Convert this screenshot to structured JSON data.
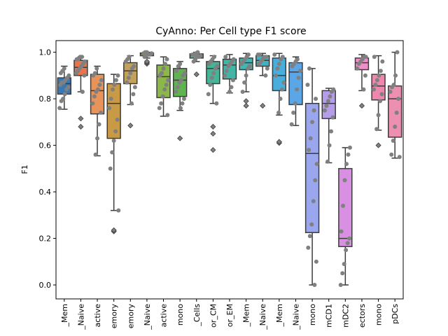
{
  "chart_data": {
    "type": "box",
    "title": "CyAnno: Per Cell type F1 score",
    "xlabel": "",
    "ylabel": "F1",
    "ylim": [
      -0.06,
      1.05
    ],
    "yticks": [
      "0.0",
      "0.2",
      "0.4",
      "0.6",
      "0.8",
      "1.0"
    ],
    "grid": false,
    "legend": "none",
    "point_color": "#808080",
    "categories": [
      {
        "label": "_Mem",
        "color": "#3a78b5",
        "q1": 0.82,
        "median": 0.865,
        "q3": 0.89,
        "wlo": 0.755,
        "whi": 0.94,
        "outliers": [],
        "points": [
          0.76,
          0.79,
          0.8,
          0.82,
          0.84,
          0.85,
          0.86,
          0.87,
          0.87,
          0.88,
          0.89,
          0.9,
          0.91,
          0.92,
          0.93
        ]
      },
      {
        "label": "_Naive",
        "color": "#e8744b",
        "q1": 0.9,
        "median": 0.935,
        "q3": 0.965,
        "wlo": 0.83,
        "whi": 0.98,
        "outliers": [
          0.68,
          0.715
        ],
        "points": [
          0.83,
          0.9,
          0.91,
          0.92,
          0.93,
          0.94,
          0.95,
          0.96,
          0.97,
          0.97,
          0.98,
          0.98
        ]
      },
      {
        "label": "active",
        "color": "#e8935a",
        "q1": 0.735,
        "median": 0.835,
        "q3": 0.905,
        "wlo": 0.555,
        "whi": 0.94,
        "outliers": [],
        "points": [
          0.56,
          0.63,
          0.69,
          0.74,
          0.78,
          0.81,
          0.83,
          0.84,
          0.86,
          0.88,
          0.9,
          0.91,
          0.93
        ]
      },
      {
        "label": "emory",
        "color": "#c99a45",
        "q1": 0.63,
        "median": 0.78,
        "q3": 0.865,
        "wlo": 0.32,
        "whi": 0.905,
        "outliers": [
          0.23,
          0.235
        ],
        "points": [
          0.32,
          0.5,
          0.57,
          0.62,
          0.66,
          0.71,
          0.76,
          0.8,
          0.84,
          0.86,
          0.88,
          0.9
        ]
      },
      {
        "label": "emory",
        "color": "#c2a15a",
        "q1": 0.865,
        "median": 0.92,
        "q3": 0.955,
        "wlo": 0.775,
        "whi": 0.985,
        "outliers": [
          0.685
        ],
        "points": [
          0.78,
          0.82,
          0.85,
          0.87,
          0.89,
          0.91,
          0.93,
          0.94,
          0.96,
          0.97,
          0.98
        ]
      },
      {
        "label": "_Naive",
        "color": "#a8ae3c",
        "q1": 0.985,
        "median": 0.993,
        "q3": 0.997,
        "wlo": 0.975,
        "whi": 1.0,
        "outliers": [
          0.95,
          0.955,
          0.96
        ],
        "points": [
          0.98,
          0.985,
          0.99,
          0.99,
          0.995,
          0.995,
          1.0,
          1.0
        ]
      },
      {
        "label": "active",
        "color": "#8bb848",
        "q1": 0.805,
        "median": 0.895,
        "q3": 0.945,
        "wlo": 0.725,
        "whi": 0.98,
        "outliers": [],
        "points": [
          0.73,
          0.76,
          0.78,
          0.81,
          0.84,
          0.86,
          0.88,
          0.9,
          0.91,
          0.93,
          0.95,
          0.97
        ]
      },
      {
        "label": "mono",
        "color": "#5fb44f",
        "q1": 0.81,
        "median": 0.88,
        "q3": 0.93,
        "wlo": 0.75,
        "whi": 0.96,
        "outliers": [
          0.63
        ],
        "points": [
          0.76,
          0.78,
          0.8,
          0.83,
          0.85,
          0.87,
          0.88,
          0.9,
          0.91,
          0.92,
          0.94,
          0.95
        ]
      },
      {
        "label": "_Cells",
        "color": "#4db88a",
        "q1": 0.975,
        "median": 0.985,
        "q3": 0.993,
        "wlo": 0.96,
        "whi": 1.0,
        "outliers": [
          0.905
        ],
        "points": [
          0.96,
          0.97,
          0.98,
          0.98,
          0.985,
          0.99,
          0.99,
          0.995,
          1.0
        ]
      },
      {
        "label": "or_CM",
        "color": "#45b597",
        "q1": 0.865,
        "median": 0.93,
        "q3": 0.96,
        "wlo": 0.78,
        "whi": 0.985,
        "outliers": [
          0.58,
          0.65,
          0.68
        ],
        "points": [
          0.78,
          0.82,
          0.86,
          0.89,
          0.91,
          0.93,
          0.94,
          0.95,
          0.96,
          0.97,
          0.98
        ]
      },
      {
        "label": "or_EM",
        "color": "#42b6a6",
        "q1": 0.885,
        "median": 0.945,
        "q3": 0.97,
        "wlo": 0.825,
        "whi": 0.99,
        "outliers": [],
        "points": [
          0.83,
          0.85,
          0.88,
          0.9,
          0.92,
          0.94,
          0.95,
          0.96,
          0.97,
          0.98
        ]
      },
      {
        "label": "_Mem",
        "color": "#3fb7b4",
        "q1": 0.925,
        "median": 0.955,
        "q3": 0.975,
        "wlo": 0.83,
        "whi": 0.995,
        "outliers": [
          0.77,
          0.79
        ],
        "points": [
          0.83,
          0.87,
          0.9,
          0.93,
          0.94,
          0.95,
          0.96,
          0.97,
          0.98,
          0.99
        ]
      },
      {
        "label": "_Naive",
        "color": "#3eb3c4",
        "q1": 0.94,
        "median": 0.965,
        "q3": 0.985,
        "wlo": 0.9,
        "whi": 0.995,
        "outliers": [
          0.77
        ],
        "points": [
          0.9,
          0.93,
          0.95,
          0.96,
          0.97,
          0.98,
          0.98,
          0.99,
          0.99
        ]
      },
      {
        "label": "_Mem",
        "color": "#4aaedc",
        "q1": 0.835,
        "median": 0.9,
        "q3": 0.975,
        "wlo": 0.73,
        "whi": 0.995,
        "outliers": [
          0.61,
          0.615
        ],
        "points": [
          0.74,
          0.8,
          0.84,
          0.87,
          0.9,
          0.93,
          0.95,
          0.97,
          0.98,
          0.99
        ]
      },
      {
        "label": "_Naive",
        "color": "#5aa6e6",
        "q1": 0.775,
        "median": 0.915,
        "q3": 0.955,
        "wlo": 0.685,
        "whi": 0.98,
        "outliers": [],
        "points": [
          0.69,
          0.74,
          0.78,
          0.84,
          0.89,
          0.92,
          0.94,
          0.95,
          0.96,
          0.97
        ]
      },
      {
        "label": "mono",
        "color": "#9aa7ee",
        "q1": 0.225,
        "median": 0.565,
        "q3": 0.78,
        "wlo": 0.0,
        "whi": 0.93,
        "outliers": [],
        "points": [
          0.0,
          0.1,
          0.16,
          0.21,
          0.26,
          0.36,
          0.45,
          0.52,
          0.58,
          0.63,
          0.7,
          0.75,
          0.8,
          0.86,
          0.93
        ]
      },
      {
        "label": "mCD1",
        "color": "#b59de9",
        "q1": 0.715,
        "median": 0.78,
        "q3": 0.835,
        "wlo": 0.525,
        "whi": 0.845,
        "outliers": [],
        "points": [
          0.53,
          0.6,
          0.66,
          0.72,
          0.75,
          0.77,
          0.79,
          0.81,
          0.83,
          0.84
        ]
      },
      {
        "label": "mDC2",
        "color": "#d990e3",
        "q1": 0.165,
        "median": 0.2,
        "q3": 0.5,
        "wlo": 0.0,
        "whi": 0.59,
        "outliers": [],
        "points": [
          0.0,
          0.05,
          0.09,
          0.15,
          0.18,
          0.2,
          0.23,
          0.34,
          0.45,
          0.52,
          0.56,
          0.59
        ]
      },
      {
        "label": "ectors",
        "color": "#ee8fc8",
        "q1": 0.925,
        "median": 0.955,
        "q3": 0.975,
        "wlo": 0.835,
        "whi": 0.99,
        "outliers": [
          0.77
        ],
        "points": [
          0.84,
          0.9,
          0.93,
          0.95,
          0.96,
          0.97,
          0.98,
          0.98
        ]
      },
      {
        "label": "mono",
        "color": "#ee86ad",
        "q1": 0.795,
        "median": 0.855,
        "q3": 0.905,
        "wlo": 0.665,
        "whi": 0.985,
        "outliers": [
          0.6
        ],
        "points": [
          0.67,
          0.73,
          0.79,
          0.82,
          0.84,
          0.86,
          0.88,
          0.9,
          0.92,
          0.96,
          0.98
        ]
      },
      {
        "label": "pDCs",
        "color": "#ec8fb0",
        "q1": 0.635,
        "median": 0.8,
        "q3": 0.855,
        "wlo": 0.545,
        "whi": 1.0,
        "outliers": [],
        "points": [
          0.55,
          0.56,
          0.62,
          0.68,
          0.74,
          0.8,
          0.83,
          0.85,
          0.86,
          0.9,
          1.0
        ]
      }
    ]
  }
}
